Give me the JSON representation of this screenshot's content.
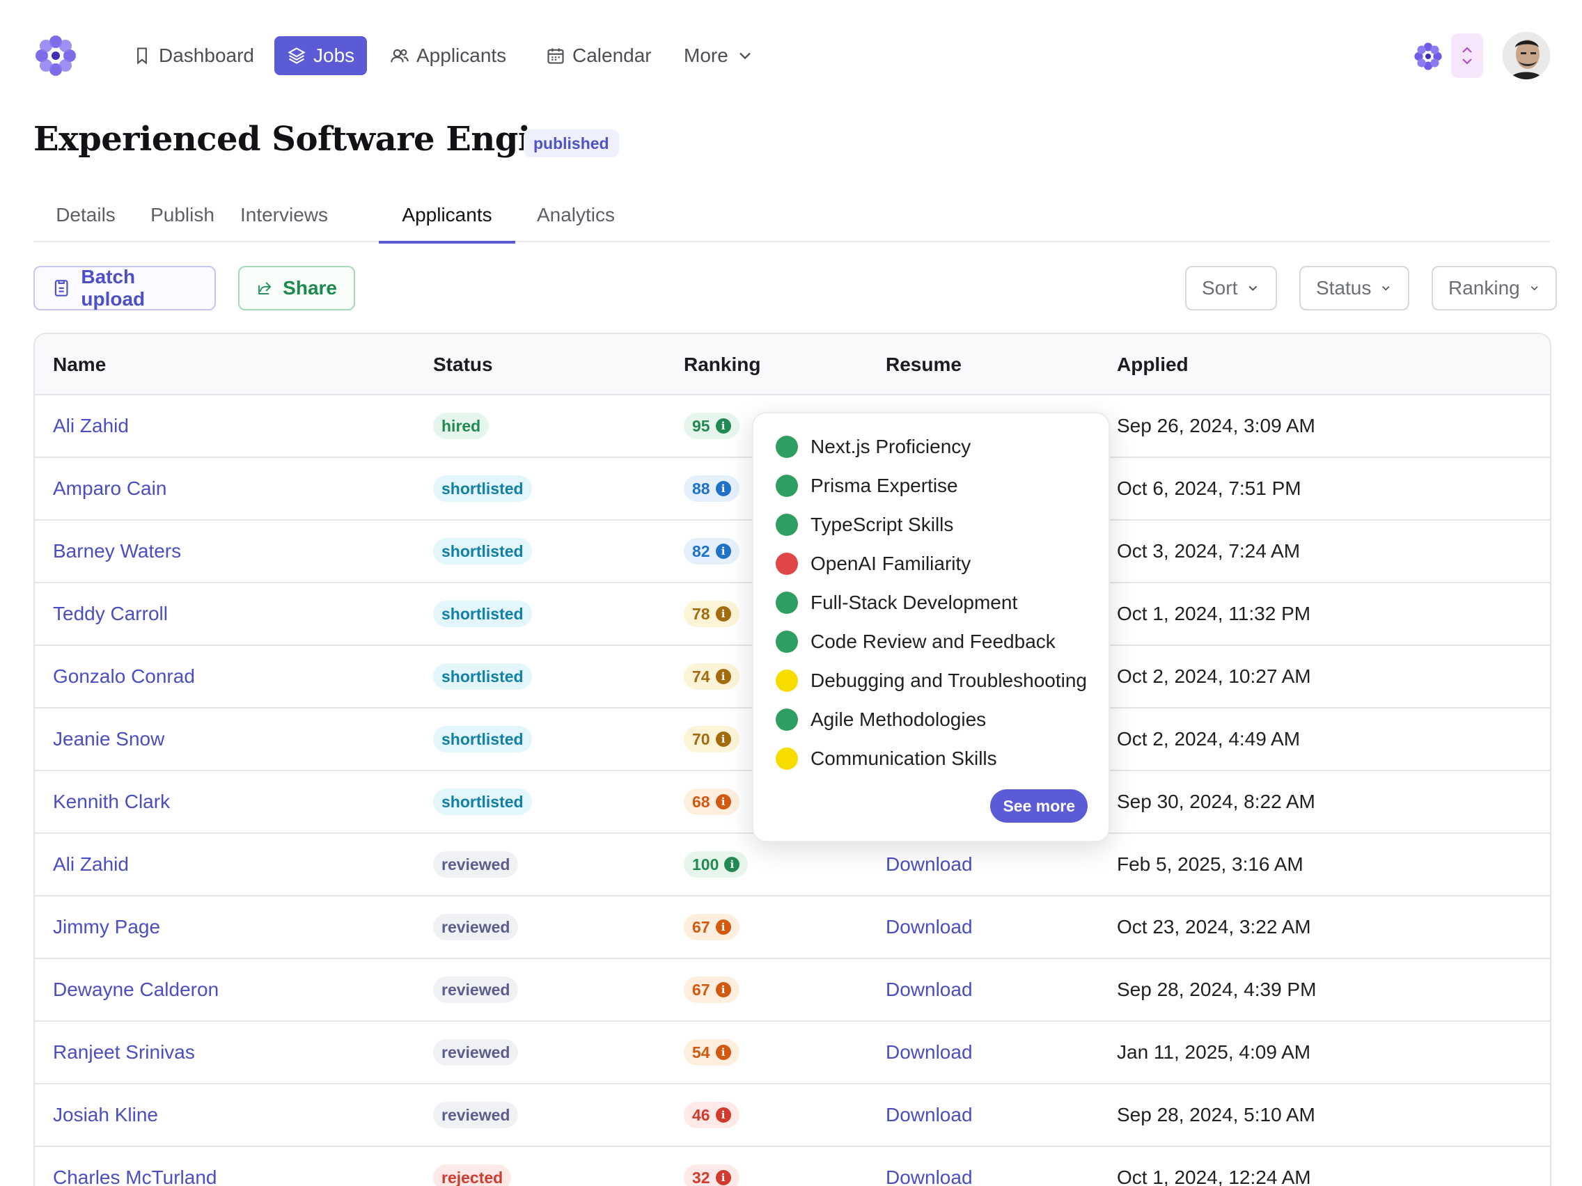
{
  "nav": {
    "items": [
      {
        "label": "Dashboard",
        "icon": "bookmark-icon",
        "active": false
      },
      {
        "label": "Jobs",
        "icon": "layers-icon",
        "active": true
      },
      {
        "label": "Applicants",
        "icon": "users-icon",
        "active": false
      },
      {
        "label": "Calendar",
        "icon": "calendar-icon",
        "active": false
      },
      {
        "label": "More",
        "icon": "chevron-down-icon",
        "active": false
      }
    ]
  },
  "page": {
    "title": "Experienced Software Engineer",
    "badge": "published"
  },
  "tabs": [
    {
      "label": "Details",
      "active": false
    },
    {
      "label": "Publish",
      "active": false
    },
    {
      "label": "Interviews",
      "active": false
    },
    {
      "label": "Applicants",
      "active": true
    },
    {
      "label": "Analytics",
      "active": false
    }
  ],
  "toolbar": {
    "batch_upload": "Batch upload",
    "share": "Share",
    "sort": "Sort",
    "status": "Status",
    "ranking": "Ranking"
  },
  "table": {
    "columns": [
      "Name",
      "Status",
      "Ranking",
      "Resume",
      "Applied"
    ],
    "rows": [
      {
        "name": "Ali Zahid",
        "status": "hired",
        "ranking": "95",
        "tone": "green",
        "resume": "",
        "applied": "Sep 26, 2024, 3:09 AM"
      },
      {
        "name": "Amparo Cain",
        "status": "shortlisted",
        "ranking": "88",
        "tone": "blue",
        "resume": "",
        "applied": "Oct 6, 2024, 7:51 PM"
      },
      {
        "name": "Barney Waters",
        "status": "shortlisted",
        "ranking": "82",
        "tone": "blue",
        "resume": "",
        "applied": "Oct 3, 2024, 7:24 AM"
      },
      {
        "name": "Teddy Carroll",
        "status": "shortlisted",
        "ranking": "78",
        "tone": "amber",
        "resume": "",
        "applied": "Oct 1, 2024, 11:32 PM"
      },
      {
        "name": "Gonzalo Conrad",
        "status": "shortlisted",
        "ranking": "74",
        "tone": "amber",
        "resume": "",
        "applied": "Oct 2, 2024, 10:27 AM"
      },
      {
        "name": "Jeanie Snow",
        "status": "shortlisted",
        "ranking": "70",
        "tone": "amber",
        "resume": "",
        "applied": "Oct 2, 2024, 4:49 AM"
      },
      {
        "name": "Kennith Clark",
        "status": "shortlisted",
        "ranking": "68",
        "tone": "orange",
        "resume": "",
        "applied": "Sep 30, 2024, 8:22 AM"
      },
      {
        "name": "Ali Zahid",
        "status": "reviewed",
        "ranking": "100",
        "tone": "green",
        "resume": "Download",
        "applied": "Feb 5, 2025, 3:16 AM"
      },
      {
        "name": "Jimmy Page",
        "status": "reviewed",
        "ranking": "67",
        "tone": "orange",
        "resume": "Download",
        "applied": "Oct 23, 2024, 3:22 AM"
      },
      {
        "name": "Dewayne Calderon",
        "status": "reviewed",
        "ranking": "67",
        "tone": "orange",
        "resume": "Download",
        "applied": "Sep 28, 2024, 4:39 PM"
      },
      {
        "name": "Ranjeet Srinivas",
        "status": "reviewed",
        "ranking": "54",
        "tone": "orange",
        "resume": "Download",
        "applied": "Jan 11, 2025, 4:09 AM"
      },
      {
        "name": "Josiah Kline",
        "status": "reviewed",
        "ranking": "46",
        "tone": "red",
        "resume": "Download",
        "applied": "Sep 28, 2024, 5:10 AM"
      },
      {
        "name": "Charles McTurland",
        "status": "rejected",
        "ranking": "32",
        "tone": "red",
        "resume": "Download",
        "applied": "Oct 1, 2024, 12:24 AM"
      }
    ]
  },
  "popover": {
    "skills": [
      {
        "label": "Next.js Proficiency",
        "color": "#2e9e62"
      },
      {
        "label": "Prisma Expertise",
        "color": "#2e9e62"
      },
      {
        "label": "TypeScript Skills",
        "color": "#2e9e62"
      },
      {
        "label": "OpenAI Familiarity",
        "color": "#e04848"
      },
      {
        "label": "Full-Stack Development",
        "color": "#2e9e62"
      },
      {
        "label": "Code Review and Feedback",
        "color": "#2e9e62"
      },
      {
        "label": "Debugging and Troubleshooting",
        "color": "#f7dc00"
      },
      {
        "label": "Agile Methodologies",
        "color": "#2e9e62"
      },
      {
        "label": "Communication Skills",
        "color": "#f7dc00"
      }
    ],
    "see_more": "See more"
  },
  "colors": {
    "accent": "#5b5bd6",
    "share_green": "#1c8a4f",
    "logo_purple": "#6d5ce8"
  }
}
